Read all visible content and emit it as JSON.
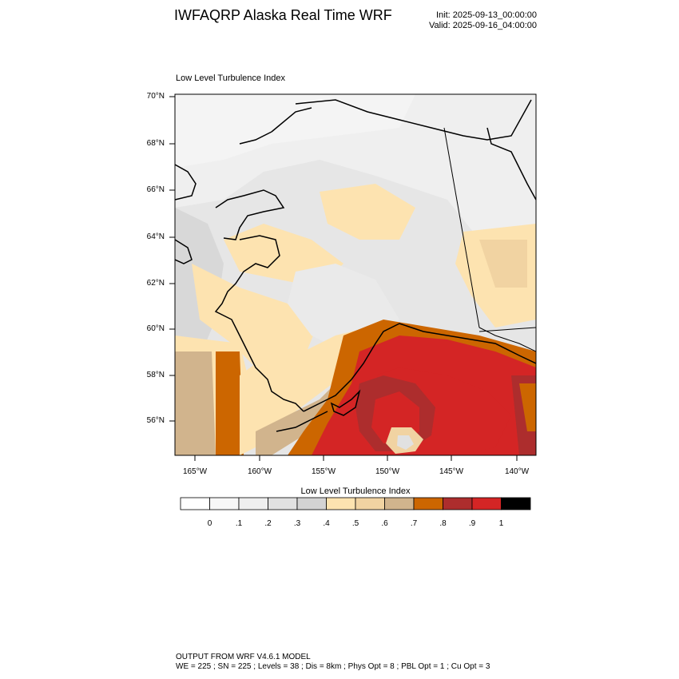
{
  "header": {
    "title": "IWFAQRP Alaska Real Time WRF",
    "init": "Init: 2025-09-13_00:00:00",
    "valid": "Valid: 2025-09-16_04:00:00"
  },
  "plot": {
    "field_label": "Low Level Turbulence Index",
    "lat_ticks": [
      "70°N",
      "68°N",
      "66°N",
      "64°N",
      "62°N",
      "60°N",
      "58°N",
      "56°N"
    ],
    "lon_ticks": [
      "165°W",
      "160°W",
      "155°W",
      "150°W",
      "145°W",
      "140°W"
    ]
  },
  "colorbar": {
    "title": "Low Level Turbulence Index",
    "labels": [
      "0",
      ".1",
      ".2",
      ".3",
      ".4",
      ".5",
      ".6",
      ".7",
      ".8",
      ".9",
      "1"
    ],
    "colors": [
      "#ffffff",
      "#f7f7f7",
      "#efefef",
      "#e1e1e1",
      "#d3d3d3",
      "#fde3b0",
      "#f1d3a2",
      "#d1b48d",
      "#cc6600",
      "#ad2d2d",
      "#d42525",
      "#000000"
    ]
  },
  "footer": {
    "line1": "OUTPUT FROM WRF V4.6.1 MODEL",
    "line2": "WE = 225 ; SN = 225 ; Levels = 38 ; Dis = 8km ; Phys Opt = 8 ; PBL Opt = 1 ; Cu Opt = 3"
  }
}
